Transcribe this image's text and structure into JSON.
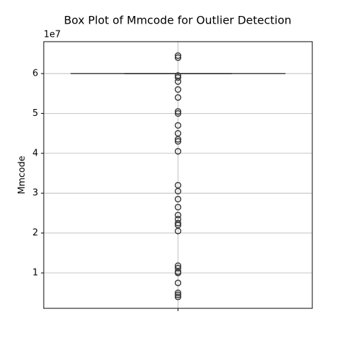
{
  "chart_data": {
    "type": "box",
    "title": "Box Plot of Mmcode for Outlier Detection",
    "ylabel": "Mmcode",
    "y_offset_label": "1e7",
    "categories": [
      null
    ],
    "ylim": [
      1120000,
      68000000
    ],
    "yticks": [
      {
        "value": 10000000,
        "label": "1"
      },
      {
        "value": 20000000,
        "label": "2"
      },
      {
        "value": 30000000,
        "label": "3"
      },
      {
        "value": 40000000,
        "label": "4"
      },
      {
        "value": 50000000,
        "label": "5"
      },
      {
        "value": 60000000,
        "label": "6"
      }
    ],
    "grid": true,
    "color": "#3d3d3d",
    "boxes": [
      {
        "whislo": 60000000,
        "q1": 60000000,
        "median": 60000000,
        "q3": 60000000,
        "whishi": 60000000,
        "fliers": [
          64500000,
          64000000,
          59500000,
          59000000,
          58000000,
          56000000,
          54000000,
          50500000,
          50000000,
          47000000,
          45000000,
          43500000,
          43000000,
          40500000,
          32000000,
          30500000,
          28500000,
          26500000,
          24500000,
          23500000,
          22500000,
          22000000,
          20500000,
          11800000,
          11200000,
          10300000,
          10000000,
          7500000,
          5000000,
          4500000,
          4000000
        ]
      }
    ]
  }
}
